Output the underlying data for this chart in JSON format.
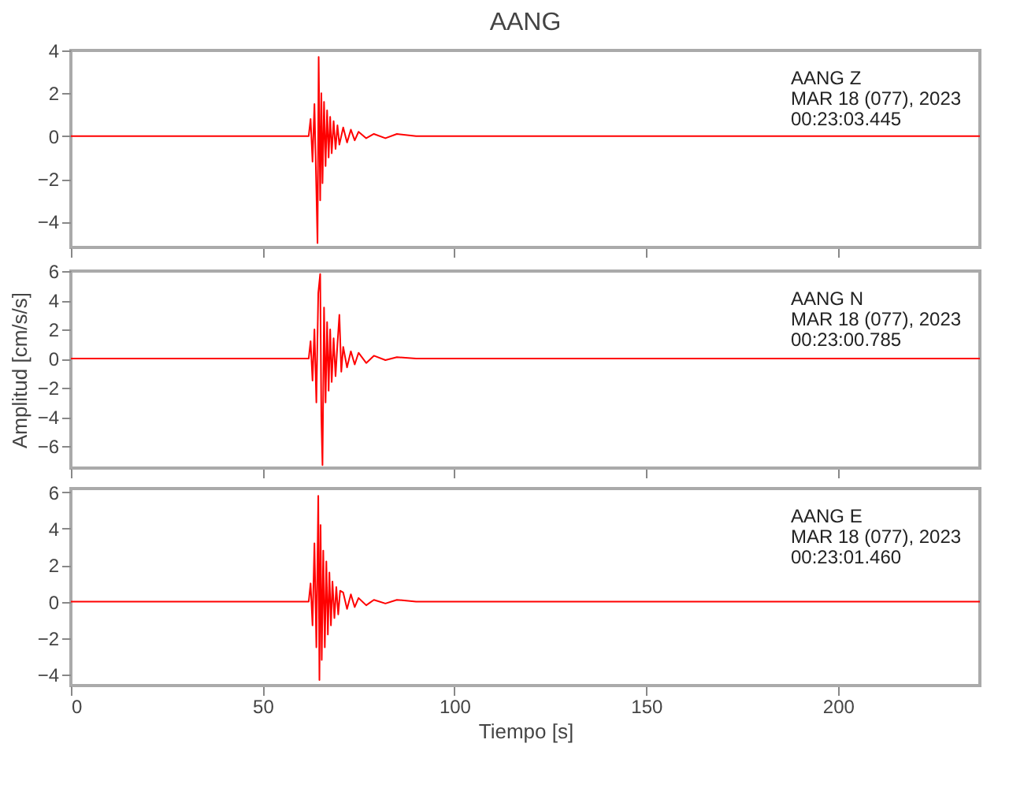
{
  "chart_data": [
    {
      "type": "line",
      "title": "AANG",
      "annotations": [
        "AANG   Z",
        "MAR 18 (077), 2023",
        "00:23:03.445"
      ],
      "xlim": [
        0,
        237
      ],
      "xticks": [
        0,
        50,
        100,
        150,
        200
      ],
      "ylim": [
        -5.2,
        4
      ],
      "yticks": [
        -4,
        -2,
        0,
        2,
        4
      ],
      "grid": false,
      "tick_labels": "y",
      "series": [
        {
          "color": "#ff0000",
          "x": [
            0,
            20,
            40,
            60,
            62,
            62.5,
            63,
            63.5,
            64,
            64.3,
            64.6,
            65,
            65.3,
            65.6,
            66,
            66.4,
            66.8,
            67.2,
            67.6,
            68,
            68.5,
            69,
            69.5,
            70,
            71,
            72,
            73,
            74,
            75,
            77,
            79,
            82,
            85,
            90,
            100,
            150,
            237
          ],
          "values": [
            0,
            0,
            0,
            0,
            0,
            0.8,
            -1.2,
            1.5,
            -2.5,
            -5.0,
            3.7,
            -3.0,
            2.0,
            -2.2,
            1.6,
            -1.4,
            1.2,
            -1.0,
            0.9,
            -0.8,
            0.7,
            -0.6,
            0.5,
            -0.4,
            0.4,
            -0.3,
            0.3,
            -0.2,
            0.2,
            -0.1,
            0.1,
            -0.1,
            0.1,
            0,
            0,
            0,
            0
          ]
        }
      ]
    },
    {
      "type": "line",
      "ylabel": "Amplitud [cm/s/s]",
      "annotations": [
        "AANG   N",
        "MAR 18 (077), 2023",
        "00:23:00.785"
      ],
      "xlim": [
        0,
        237
      ],
      "xticks": [
        0,
        50,
        100,
        150,
        200
      ],
      "ylim": [
        -7.5,
        6
      ],
      "yticks": [
        -6,
        -4,
        -2,
        0,
        2,
        4,
        6
      ],
      "grid": false,
      "tick_labels": "y",
      "series": [
        {
          "color": "#ff0000",
          "x": [
            0,
            20,
            40,
            60,
            62,
            62.5,
            63,
            63.5,
            64,
            64.5,
            65,
            65.3,
            65.6,
            66,
            66.4,
            66.8,
            67.2,
            67.6,
            68,
            68.5,
            69,
            69.5,
            70,
            70.5,
            71,
            72,
            73,
            74,
            75,
            77,
            79,
            82,
            85,
            90,
            100,
            150,
            237
          ],
          "values": [
            0,
            0,
            0,
            0,
            0,
            1.2,
            -1.5,
            2.0,
            -3.0,
            4.5,
            5.8,
            -4.0,
            -7.3,
            3.5,
            -3.0,
            2.5,
            -2.2,
            2.0,
            -1.6,
            1.4,
            -1.2,
            1.0,
            3.0,
            -0.9,
            0.8,
            -0.6,
            0.5,
            -0.4,
            0.4,
            -0.3,
            0.2,
            -0.1,
            0.1,
            0,
            0,
            0,
            0
          ]
        }
      ]
    },
    {
      "type": "line",
      "xlabel": "Tiempo [s]",
      "annotations": [
        "AANG   E",
        "MAR 18 (077), 2023",
        "00:23:01.460"
      ],
      "xlim": [
        0,
        237
      ],
      "xticks": [
        0,
        50,
        100,
        150,
        200
      ],
      "ylim": [
        -4.6,
        6.2
      ],
      "yticks": [
        -4,
        -2,
        0,
        2,
        4,
        6
      ],
      "grid": false,
      "series": [
        {
          "color": "#ff0000",
          "x": [
            0,
            20,
            40,
            60,
            62,
            62.5,
            63,
            63.5,
            64,
            64.5,
            64.8,
            65.1,
            65.4,
            65.8,
            66.2,
            66.6,
            67,
            67.4,
            67.8,
            68.2,
            68.7,
            69.2,
            69.7,
            70.2,
            71,
            72,
            73,
            74,
            75,
            77,
            79,
            82,
            85,
            90,
            100,
            150,
            237
          ],
          "values": [
            0,
            0,
            0,
            0,
            0,
            1.0,
            -1.3,
            3.2,
            -2.5,
            5.8,
            -4.3,
            4.2,
            -3.2,
            2.8,
            -2.5,
            2.2,
            -1.8,
            1.6,
            -1.3,
            1.1,
            -0.9,
            0.8,
            -0.7,
            0.6,
            0.5,
            -0.4,
            0.4,
            -0.3,
            0.2,
            -0.2,
            0.1,
            -0.1,
            0.1,
            0,
            0,
            0,
            0
          ]
        }
      ]
    }
  ]
}
